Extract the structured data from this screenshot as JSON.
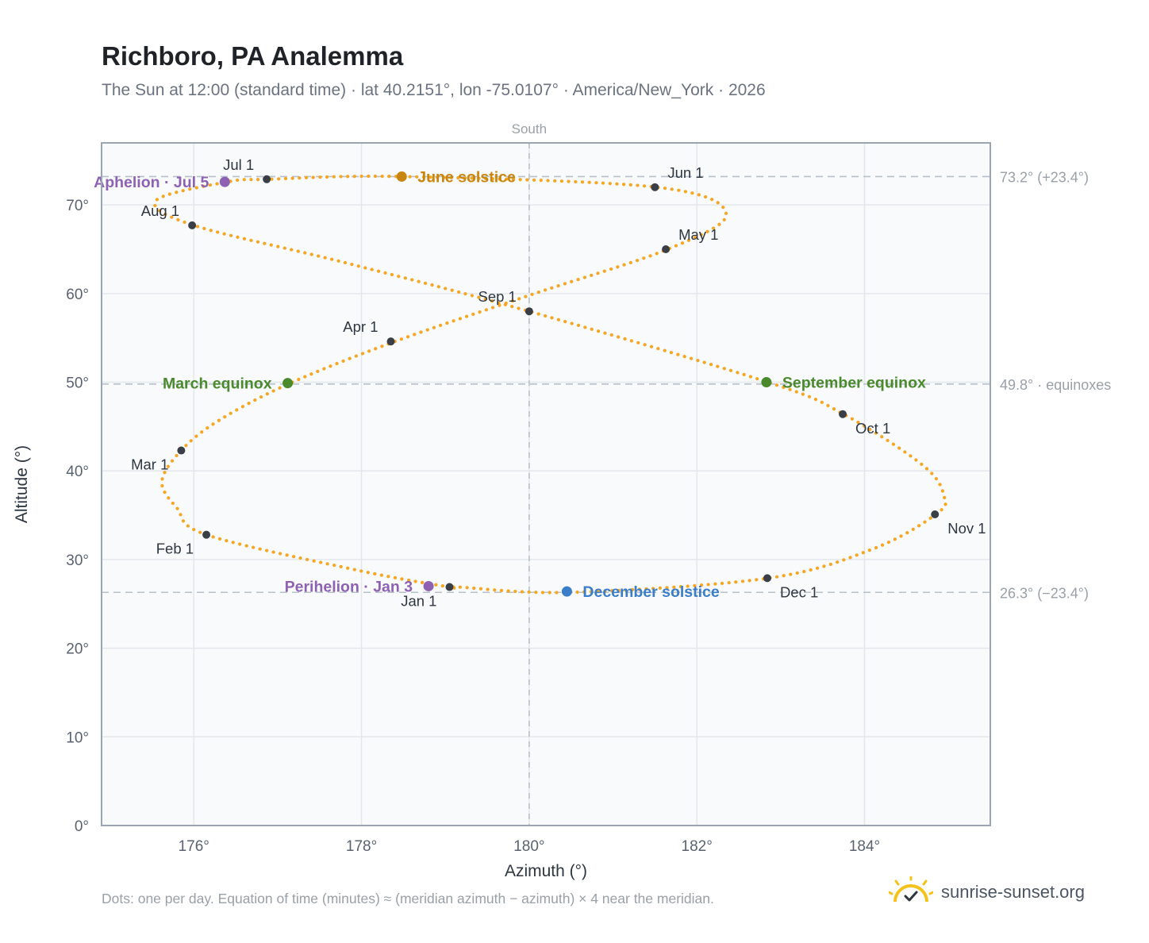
{
  "header": {
    "title": "Richboro, PA Analemma",
    "subtitle": "The Sun at 12:00 (standard time) · lat 40.2151°, lon -75.0107° · America/New_York · 2026"
  },
  "footer": {
    "note": "Dots: one per day. Equation of time (minutes) ≈ (meridian azimuth − azimuth) × 4 near the meridian.",
    "brand": "sunrise-sunset.org",
    "brand_icon": "sun-check-icon"
  },
  "chart_data": {
    "type": "scatter",
    "xlabel": "Azimuth (°)",
    "ylabel": "Altitude (°)",
    "xlim": [
      174.9,
      185.5
    ],
    "ylim": [
      0,
      77
    ],
    "xticks": [
      176,
      178,
      180,
      182,
      184
    ],
    "yticks": [
      0,
      10,
      20,
      30,
      40,
      50,
      60,
      70
    ],
    "tick_suffix": "°",
    "grid": true,
    "meridian": {
      "x": 180,
      "label": "South"
    },
    "reference_lines": [
      {
        "y": 73.2,
        "label": "73.2° (+23.4°)"
      },
      {
        "y": 49.8,
        "label": "49.8° · equinoxes"
      },
      {
        "y": 26.3,
        "label": "26.3° (−23.4°)"
      }
    ],
    "daily_points": [
      {
        "date": "Jan 1",
        "az": 179.05,
        "alt": 26.9
      },
      {
        "date": "Jan 15",
        "az": 177.95,
        "alt": 28.8
      },
      {
        "date": "Feb 1",
        "az": 176.15,
        "alt": 32.8
      },
      {
        "date": "Feb 10",
        "az": 175.8,
        "alt": 35.8
      },
      {
        "date": "Feb 20",
        "az": 175.62,
        "alt": 38.8
      },
      {
        "date": "Mar 1",
        "az": 175.85,
        "alt": 42.3
      },
      {
        "date": "Mar 10",
        "az": 176.3,
        "alt": 45.7
      },
      {
        "date": "Mar 20",
        "az": 177.15,
        "alt": 49.9
      },
      {
        "date": "Apr 1",
        "az": 178.4,
        "alt": 54.6
      },
      {
        "date": "Apr 15",
        "az": 180.0,
        "alt": 59.8
      },
      {
        "date": "May 1",
        "az": 181.65,
        "alt": 65.0
      },
      {
        "date": "May 15",
        "az": 182.35,
        "alt": 69.0
      },
      {
        "date": "Jun 1",
        "az": 181.52,
        "alt": 72.0
      },
      {
        "date": "Jun 21",
        "az": 178.5,
        "alt": 73.2
      },
      {
        "date": "Jul 1",
        "az": 176.9,
        "alt": 72.9
      },
      {
        "date": "Jul 5",
        "az": 176.4,
        "alt": 72.6
      },
      {
        "date": "Jul 20",
        "az": 175.55,
        "alt": 70.5
      },
      {
        "date": "Aug 1",
        "az": 176.0,
        "alt": 67.7
      },
      {
        "date": "Aug 15",
        "az": 177.8,
        "alt": 63.5
      },
      {
        "date": "Sep 1",
        "az": 180.0,
        "alt": 58.0
      },
      {
        "date": "Sep 22",
        "az": 182.85,
        "alt": 50.0
      },
      {
        "date": "Oct 1",
        "az": 183.75,
        "alt": 46.4
      },
      {
        "date": "Oct 15",
        "az": 184.7,
        "alt": 40.6
      },
      {
        "date": "Oct 25",
        "az": 184.95,
        "alt": 37.1
      },
      {
        "date": "Nov 1",
        "az": 184.85,
        "alt": 35.1
      },
      {
        "date": "Nov 15",
        "az": 184.1,
        "alt": 31.2
      },
      {
        "date": "Dec 1",
        "az": 182.85,
        "alt": 27.9
      },
      {
        "date": "Dec 21",
        "az": 180.5,
        "alt": 26.3
      },
      {
        "date": "Dec 31",
        "az": 179.15,
        "alt": 26.9
      }
    ],
    "month_markers": [
      {
        "label": "Jan 1",
        "az": 179.05,
        "alt": 26.9,
        "anchor": "below-left"
      },
      {
        "label": "Feb 1",
        "az": 176.15,
        "alt": 32.8,
        "anchor": "below-left"
      },
      {
        "label": "Mar 1",
        "az": 175.85,
        "alt": 42.3,
        "anchor": "below-left"
      },
      {
        "label": "Apr 1",
        "az": 178.35,
        "alt": 54.6,
        "anchor": "above-left"
      },
      {
        "label": "May 1",
        "az": 181.63,
        "alt": 65.0,
        "anchor": "above-right"
      },
      {
        "label": "Jun 1",
        "az": 181.5,
        "alt": 72.0,
        "anchor": "above-right"
      },
      {
        "label": "Jul 1",
        "az": 176.87,
        "alt": 72.9,
        "anchor": "above-left"
      },
      {
        "label": "Aug 1",
        "az": 175.98,
        "alt": 67.7,
        "anchor": "above-left"
      },
      {
        "label": "Sep 1",
        "az": 180.0,
        "alt": 58.0,
        "anchor": "above-left"
      },
      {
        "label": "Oct 1",
        "az": 183.74,
        "alt": 46.4,
        "anchor": "below-right"
      },
      {
        "label": "Nov 1",
        "az": 184.84,
        "alt": 35.1,
        "anchor": "below-right"
      },
      {
        "label": "Dec 1",
        "az": 182.84,
        "alt": 27.9,
        "anchor": "below-right"
      }
    ],
    "events": [
      {
        "label": "June solstice",
        "az": 178.48,
        "alt": 73.2,
        "color": "#c9860e",
        "side": "right"
      },
      {
        "label": "March equinox",
        "az": 177.12,
        "alt": 49.9,
        "color": "#4a8a2c",
        "side": "left"
      },
      {
        "label": "September equinox",
        "az": 182.83,
        "alt": 50.0,
        "color": "#4a8a2c",
        "side": "right"
      },
      {
        "label": "December solstice",
        "az": 180.45,
        "alt": 26.4,
        "color": "#3a7dc9",
        "side": "right"
      },
      {
        "label": "Aphelion · Jul 5",
        "az": 176.37,
        "alt": 72.6,
        "color": "#8e62b3",
        "side": "left"
      },
      {
        "label": "Perihelion · Jan 3",
        "az": 178.8,
        "alt": 27.0,
        "color": "#8e62b3",
        "side": "left"
      }
    ],
    "colors": {
      "curve": "#f5a623",
      "month_marker": "#3a3f47",
      "grid": "#e3e7ec",
      "plot_bg": "#f8fafc",
      "frame": "#9aa4b2",
      "ref_line": "#b8c0ca",
      "tick_text": "#5a6270"
    }
  }
}
